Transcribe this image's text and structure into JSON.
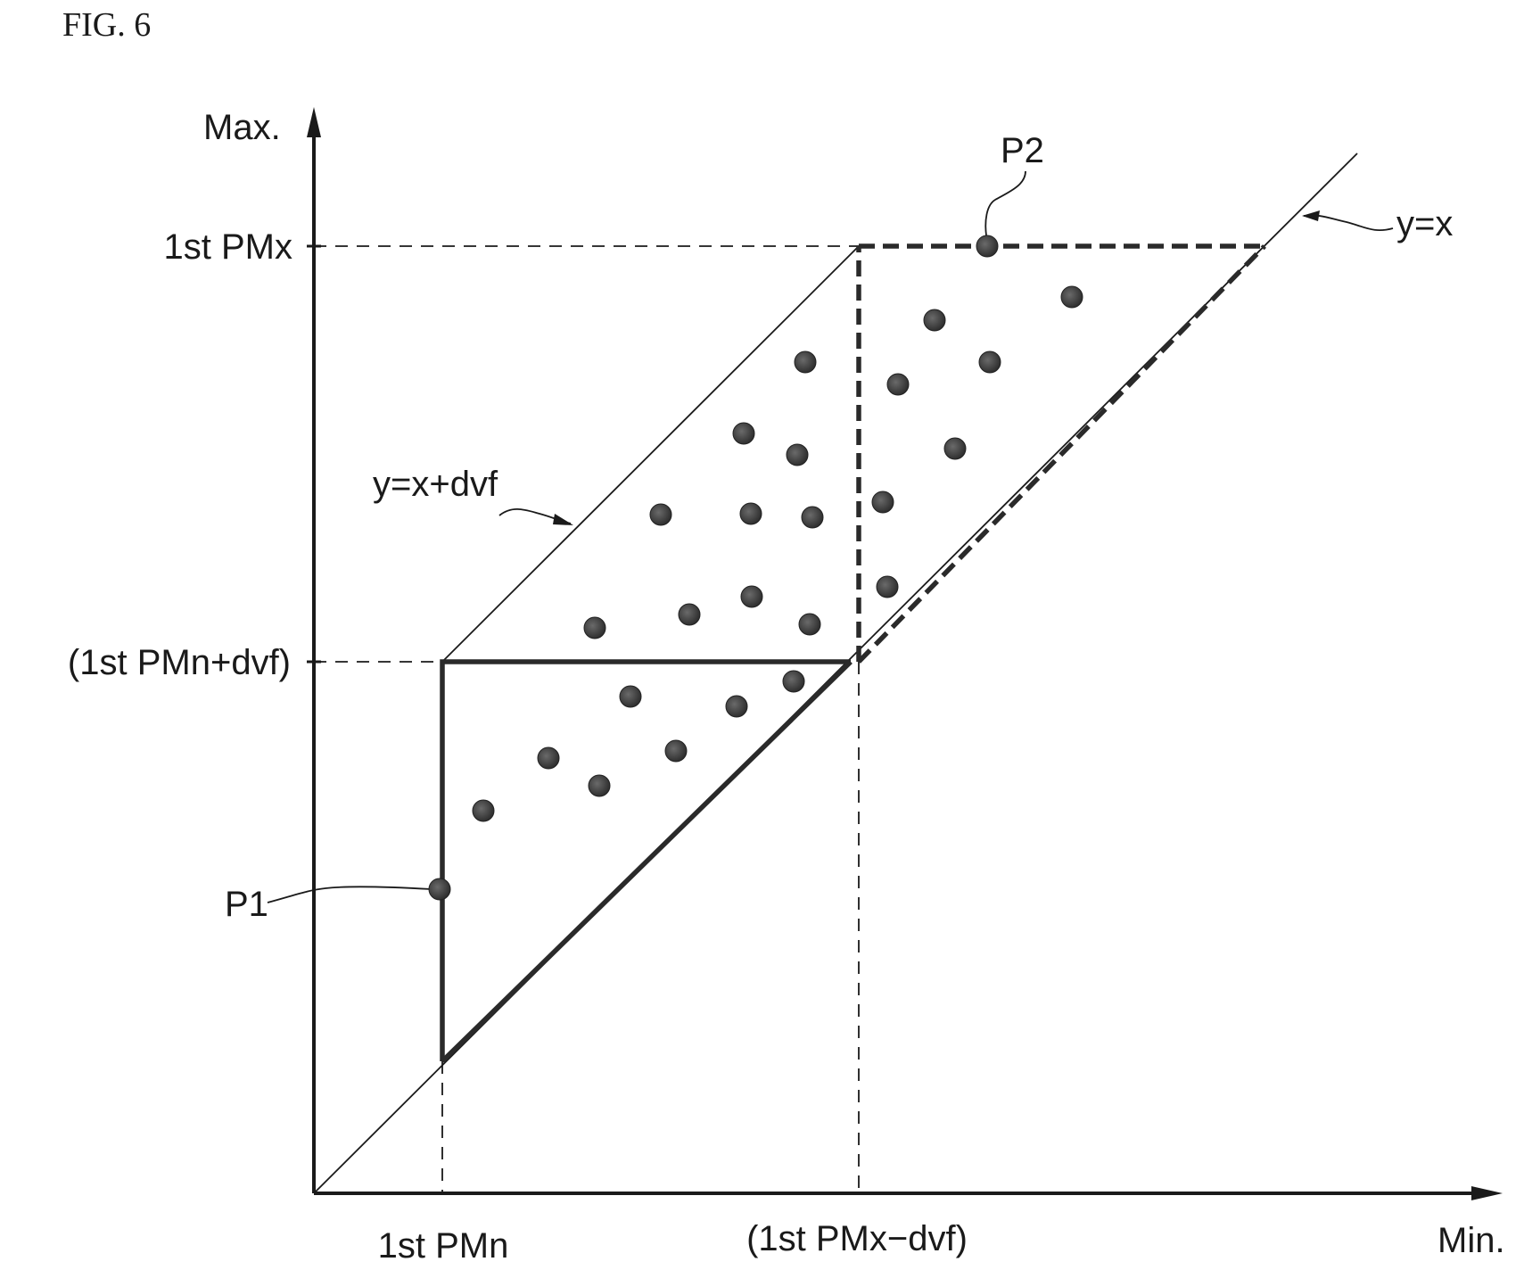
{
  "figure_label": "FIG. 6",
  "axes": {
    "y_label": "Max.",
    "x_label": "Min."
  },
  "tick_labels": {
    "y_upper": "1st PMx",
    "y_lower": "(1st PMn+dvf)",
    "x_left": "1st PMn",
    "x_right": "(1st PMx−dvf)"
  },
  "line_labels": {
    "identity": "y=x",
    "offset": "y=x+dvf"
  },
  "point_labels": {
    "p1": "P1",
    "p2": "P2"
  }
}
